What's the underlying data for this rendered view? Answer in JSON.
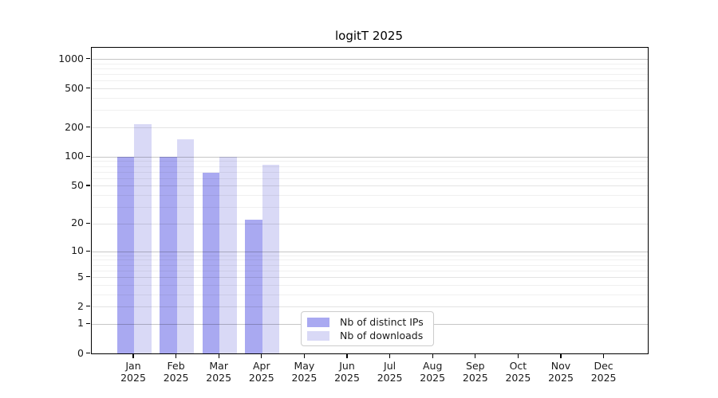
{
  "title": "logitT 2025",
  "chart_data": {
    "type": "bar",
    "title": "logitT 2025",
    "categories": [
      {
        "month": "Jan",
        "year": "2025"
      },
      {
        "month": "Feb",
        "year": "2025"
      },
      {
        "month": "Mar",
        "year": "2025"
      },
      {
        "month": "Apr",
        "year": "2025"
      },
      {
        "month": "May",
        "year": "2025"
      },
      {
        "month": "Jun",
        "year": "2025"
      },
      {
        "month": "Jul",
        "year": "2025"
      },
      {
        "month": "Aug",
        "year": "2025"
      },
      {
        "month": "Sep",
        "year": "2025"
      },
      {
        "month": "Oct",
        "year": "2025"
      },
      {
        "month": "Nov",
        "year": "2025"
      },
      {
        "month": "Dec",
        "year": "2025"
      }
    ],
    "series": [
      {
        "name": "Nb of distinct IPs",
        "color": "#a9a9f1",
        "values": [
          100,
          100,
          68,
          22,
          0,
          0,
          0,
          0,
          0,
          0,
          0,
          0
        ]
      },
      {
        "name": "Nb of downloads",
        "color": "#d9d9f6",
        "values": [
          215,
          152,
          99,
          83,
          0,
          0,
          0,
          0,
          0,
          0,
          0,
          0
        ]
      }
    ],
    "yticks": [
      0,
      1,
      2,
      5,
      10,
      20,
      50,
      100,
      200,
      500,
      1000
    ],
    "scale": "log1p",
    "ylim": [
      0,
      1300
    ],
    "grid": true,
    "legend_position": "bottom-center"
  }
}
